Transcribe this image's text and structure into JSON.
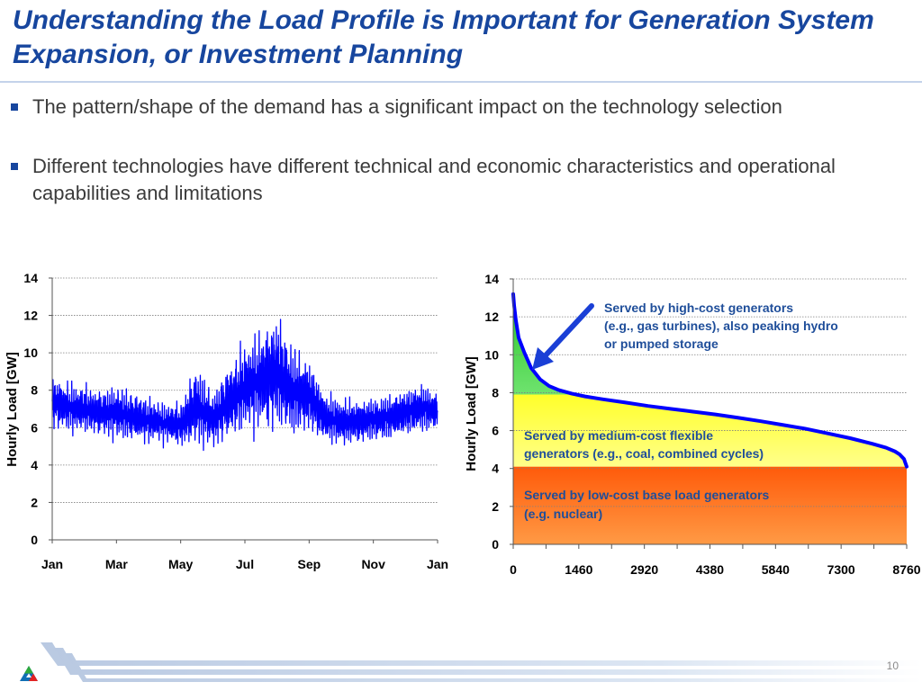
{
  "slide": {
    "title": "Understanding the Load Profile is Important for Generation System Expansion, or Investment Planning",
    "bullets": [
      "The pattern/shape of the demand has a significant impact on the technology selection",
      "Different technologies have different technical and economic characteristics and operational capabilities and limitations"
    ],
    "page_number": "10"
  },
  "colors": {
    "title": "#17469e",
    "bullet": "#17469e",
    "series": "#0000ff",
    "annotation_text": "#1f4e9a",
    "annotation_arrow": "#1a3fd6",
    "peak_band": "#33cc33",
    "mid_band": "#ffff33",
    "base_band": "#ff6a1a"
  },
  "chart_data": [
    {
      "type": "line",
      "ylabel": "Hourly Load [GW]",
      "xlabel": "",
      "ylim": [
        0,
        14
      ],
      "yticks": [
        "0",
        "2",
        "4",
        "6",
        "8",
        "10",
        "12",
        "14"
      ],
      "xticks": [
        "Jan",
        "Mar",
        "May",
        "Jul",
        "Sep",
        "Nov",
        "Jan"
      ],
      "grid": true,
      "series": [
        {
          "envelope": {
            "x_month": [
              0,
              0.5,
              1,
              1.5,
              2,
              2.5,
              3,
              3.5,
              4,
              4.5,
              5,
              5.5,
              6,
              6.5,
              7,
              7.5,
              8,
              8.5,
              9,
              9.5,
              10,
              10.5,
              11,
              11.5,
              12
            ],
            "upper": [
              9.2,
              8.8,
              8.7,
              8.4,
              8.7,
              8.3,
              8.0,
              7.6,
              7.7,
              10.0,
              8.3,
              10.0,
              11.2,
              12.0,
              13.1,
              11.0,
              10.3,
              8.3,
              8.0,
              7.9,
              8.0,
              8.2,
              8.5,
              8.8,
              8.3
            ],
            "lower": [
              5.6,
              5.3,
              5.3,
              5.2,
              4.9,
              4.9,
              4.8,
              4.9,
              4.6,
              4.4,
              4.5,
              4.8,
              5.1,
              5.0,
              4.9,
              4.8,
              5.1,
              4.8,
              4.6,
              4.7,
              4.9,
              4.9,
              5.1,
              5.3,
              5.5
            ]
          }
        }
      ]
    },
    {
      "type": "area",
      "ylabel": "Hourly Load [GW]",
      "xlabel": "",
      "xlim": [
        0,
        8760
      ],
      "ylim": [
        0,
        14
      ],
      "yticks": [
        "0",
        "2",
        "4",
        "6",
        "8",
        "10",
        "12",
        "14"
      ],
      "xticks": [
        "0",
        "1460",
        "2920",
        "4380",
        "5840",
        "7300",
        "8760"
      ],
      "grid": true,
      "series": [
        {
          "name": "Load duration curve",
          "x": [
            0,
            20,
            60,
            120,
            250,
            400,
            600,
            800,
            1000,
            1300,
            1600,
            2000,
            2500,
            3000,
            3500,
            4000,
            4500,
            5000,
            5500,
            6000,
            6500,
            7000,
            7500,
            8000,
            8300,
            8500,
            8600,
            8700,
            8760
          ],
          "y": [
            13.2,
            12.6,
            11.8,
            10.9,
            10.1,
            9.3,
            8.7,
            8.35,
            8.15,
            7.95,
            7.8,
            7.65,
            7.48,
            7.3,
            7.15,
            7.0,
            6.85,
            6.68,
            6.5,
            6.3,
            6.1,
            5.85,
            5.6,
            5.3,
            5.1,
            4.9,
            4.75,
            4.5,
            4.1
          ]
        }
      ],
      "bands": [
        {
          "label": "Served by high-cost generators\n(e.g., gas turbines), also peaking hydro\nor pumped storage",
          "from": 7.9,
          "to": 14
        },
        {
          "label": "Served by medium-cost flexible\ngenerators (e.g., coal, combined cycles)",
          "from": 4.1,
          "to": 7.9
        },
        {
          "label": "Served by low-cost base load generators\n(e.g. nuclear)",
          "from": 0,
          "to": 4.1
        }
      ]
    }
  ]
}
